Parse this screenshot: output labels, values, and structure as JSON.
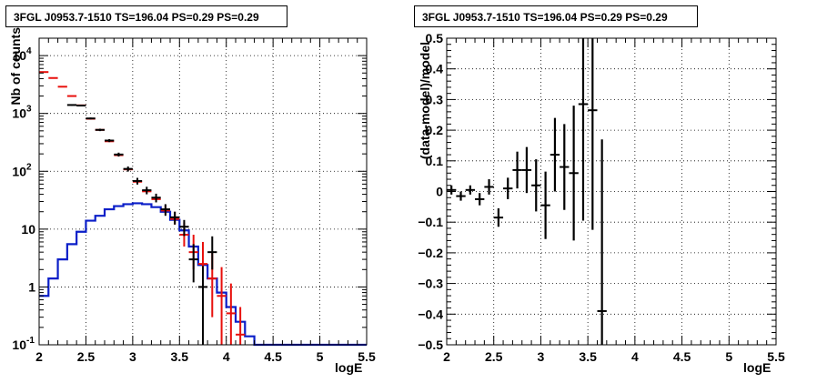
{
  "chart_data": [
    {
      "type": "line",
      "title": "3FGL J0953.7-1510 TS=196.04 PS=0.29 PS=0.29",
      "xlabel": "logE",
      "ylabel": "Nb of counts",
      "xlim": [
        2,
        5.5
      ],
      "ylim": [
        0.1,
        20000
      ],
      "yscale": "log",
      "grid": true,
      "x_ticks": [
        "2",
        "2.5",
        "3",
        "3.5",
        "4",
        "4.5",
        "5",
        "5.5"
      ],
      "y_ticks": [
        "10^-1",
        "1",
        "10",
        "10^2",
        "10^3",
        "10^4"
      ],
      "series": [
        {
          "color": "#e8100c",
          "style": "step-errorbars",
          "bin_width": 0.1,
          "x": [
            2.05,
            2.15,
            2.25,
            2.35,
            2.45,
            2.55,
            2.65,
            2.75,
            2.85,
            2.95,
            3.05,
            3.15,
            3.25,
            3.35,
            3.45,
            3.55,
            3.65,
            3.75,
            3.85,
            3.95,
            4.05,
            4.15
          ],
          "y": [
            5200,
            4100,
            2900,
            2000,
            1380,
            810,
            520,
            330,
            190,
            108,
            66,
            45,
            33,
            21,
            15,
            8,
            4,
            2.5,
            1.4,
            0.7,
            0.35,
            0.15
          ],
          "yerr_low": [
            0,
            0,
            0,
            0,
            0,
            0,
            0,
            0,
            0,
            0,
            0,
            0,
            0,
            3,
            3,
            3,
            2,
            1.6,
            1.1,
            0.6,
            0.3,
            0.13
          ],
          "yerr_high": [
            0,
            0,
            0,
            0,
            0,
            0,
            0,
            0,
            0,
            0,
            0,
            0,
            0,
            5,
            5,
            5,
            4,
            3.5,
            2.5,
            1.5,
            0.8,
            0.3
          ]
        },
        {
          "color": "#000000",
          "style": "errorbars",
          "bin_width": 0.1,
          "x": [
            2.35,
            2.45,
            2.55,
            2.65,
            2.75,
            2.85,
            2.95,
            3.05,
            3.15,
            3.25,
            3.35,
            3.45,
            3.55,
            3.65,
            3.75,
            3.85
          ],
          "y": [
            1400,
            1370,
            820,
            520,
            340,
            195,
            110,
            68,
            47,
            35,
            22,
            16,
            11,
            3,
            1,
            4
          ],
          "yerr_low": [
            40,
            40,
            30,
            25,
            20,
            15,
            11,
            9,
            7,
            6,
            5,
            4,
            3.4,
            1.8,
            0.9,
            2
          ],
          "yerr_high": [
            40,
            40,
            30,
            25,
            20,
            15,
            11,
            9,
            7,
            6,
            5,
            4,
            3.4,
            2.5,
            1.3,
            3.5
          ]
        },
        {
          "color": "#0a1ec8",
          "style": "histogram",
          "bin_edges": [
            2.0,
            2.1,
            2.2,
            2.3,
            2.4,
            2.5,
            2.6,
            2.7,
            2.8,
            2.9,
            3.0,
            3.1,
            3.2,
            3.3,
            3.4,
            3.5,
            3.6,
            3.7,
            3.8,
            3.9,
            4.0,
            4.1,
            4.2,
            4.3,
            5.5
          ],
          "y": [
            0.7,
            1.4,
            3.0,
            5.5,
            9.0,
            14,
            17,
            22,
            25,
            27,
            28,
            27,
            24,
            20,
            14.5,
            9.5,
            5.0,
            2.4,
            1.4,
            0.8,
            0.45,
            0.25,
            0.14,
            0.1
          ]
        }
      ]
    },
    {
      "type": "scatter",
      "title": "3FGL J0953.7-1510 TS=196.04 PS=0.29 PS=0.29",
      "xlabel": "logE",
      "ylabel": "(data-model)/model",
      "xlim": [
        2,
        5.5
      ],
      "ylim": [
        -0.5,
        0.5
      ],
      "grid": true,
      "x_ticks": [
        "2",
        "2.5",
        "3",
        "3.5",
        "4",
        "4.5",
        "5",
        "5.5"
      ],
      "y_ticks": [
        "−0.5",
        "−0.4",
        "−0.3",
        "−0.2",
        "−0.1",
        "0",
        "0.1",
        "0.2",
        "0.3",
        "0.4",
        "0.5"
      ],
      "series": [
        {
          "color": "#000000",
          "style": "errorbars",
          "bin_width": 0.1,
          "x": [
            2.05,
            2.15,
            2.25,
            2.35,
            2.45,
            2.55,
            2.65,
            2.75,
            2.85,
            2.95,
            3.05,
            3.15,
            3.25,
            3.35,
            3.45,
            3.55,
            3.65
          ],
          "y": [
            0.005,
            -0.015,
            0.005,
            -0.025,
            0.015,
            -0.085,
            0.01,
            0.07,
            0.07,
            0.02,
            -0.045,
            0.12,
            0.08,
            0.06,
            0.285,
            0.265,
            -0.39
          ],
          "yerr": [
            0.015,
            0.015,
            0.015,
            0.02,
            0.025,
            0.03,
            0.035,
            0.06,
            0.075,
            0.085,
            0.11,
            0.12,
            0.14,
            0.22,
            0.38,
            0.39,
            0.56
          ]
        }
      ]
    }
  ]
}
